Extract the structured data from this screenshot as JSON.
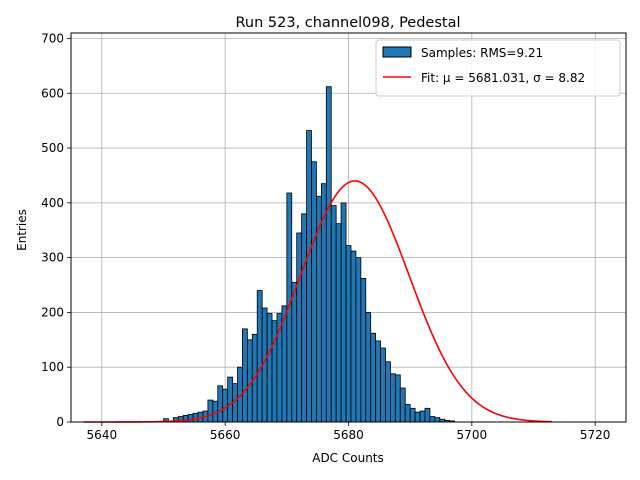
{
  "chart_data": {
    "type": "bar",
    "title": "Run 523, channel098, Pedestal",
    "xlabel": "ADC Counts",
    "ylabel": "Entries",
    "xlim": [
      5635,
      5725
    ],
    "ylim": [
      0,
      710
    ],
    "xticks": [
      5640,
      5660,
      5680,
      5700,
      5720
    ],
    "yticks": [
      0,
      100,
      200,
      300,
      400,
      500,
      600,
      700
    ],
    "grid": true,
    "legend_position": "top-right",
    "colors": {
      "bars": "#1f77b4",
      "bar_edge": "#000000",
      "fit": "#ff0000",
      "grid": "#b0b0b0"
    },
    "histogram": {
      "name": "Samples: RMS=9.21",
      "bin_start": 5650,
      "bin_width": 0.8,
      "counts": [
        6,
        0,
        8,
        10,
        12,
        14,
        16,
        18,
        20,
        40,
        38,
        66,
        60,
        82,
        70,
        100,
        170,
        150,
        160,
        240,
        208,
        198,
        185,
        198,
        212,
        418,
        255,
        345,
        380,
        532,
        475,
        412,
        435,
        612,
        395,
        362,
        400,
        322,
        312,
        300,
        262,
        200,
        162,
        148,
        135,
        110,
        88,
        86,
        62,
        32,
        25,
        18,
        20,
        25,
        10,
        8,
        5,
        3,
        2
      ]
    },
    "fit": {
      "name": "Fit: μ = 5681.031, σ = 8.82",
      "type": "gaussian",
      "mu": 5681.031,
      "sigma": 8.82,
      "amplitude": 440,
      "x_range": [
        5637,
        5713
      ]
    }
  }
}
